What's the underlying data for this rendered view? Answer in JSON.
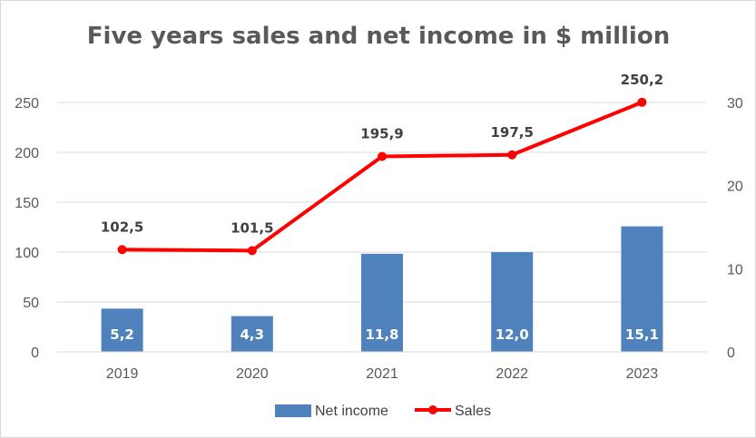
{
  "colors": {
    "bar": "#4f81bd",
    "line": "#ff0000",
    "grid": "#d9d9d9",
    "text": "#595959"
  },
  "chart_data": {
    "type": "bar+line",
    "title": "Five years sales and net income in $ million",
    "categories": [
      "2019",
      "2020",
      "2021",
      "2022",
      "2023"
    ],
    "series": [
      {
        "name": "Net income",
        "type": "bar",
        "axis": "right",
        "values": [
          5.2,
          4.3,
          11.8,
          12.0,
          15.1
        ],
        "labels": [
          "5,2",
          "4,3",
          "11,8",
          "12,0",
          "15,1"
        ]
      },
      {
        "name": "Sales",
        "type": "line",
        "axis": "left",
        "values": [
          102.5,
          101.5,
          195.9,
          197.5,
          250.2
        ],
        "labels": [
          "102,5",
          "101,5",
          "195,9",
          "197,5",
          "250,2"
        ]
      }
    ],
    "y_left": {
      "min": 0,
      "max": 250,
      "ticks": [
        "0",
        "50",
        "100",
        "150",
        "200",
        "250"
      ]
    },
    "y_right": {
      "min": 0,
      "max": 30,
      "ticks": [
        "0",
        "10",
        "20",
        "30"
      ]
    },
    "grid": true,
    "legend": "bottom"
  }
}
